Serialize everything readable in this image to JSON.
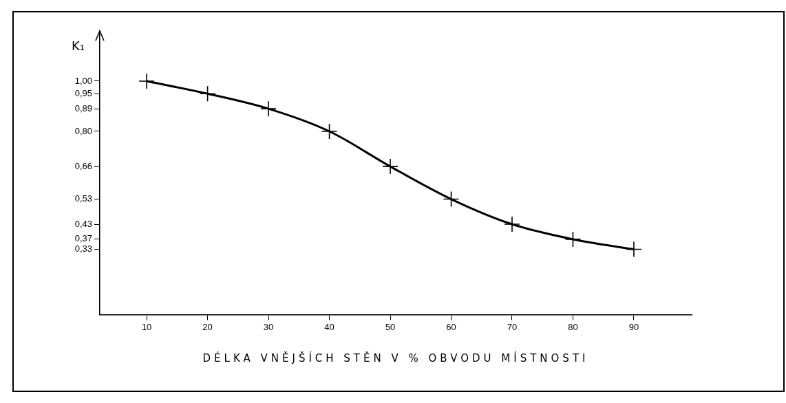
{
  "chart_data": {
    "type": "line",
    "ylabel": "K₁",
    "xlabel": "DÉLKA VNĚJŠÍCH STĚN V % OBVODU MÍSTNOSTI",
    "x": [
      10,
      20,
      30,
      40,
      50,
      60,
      70,
      80,
      90
    ],
    "series": [
      {
        "color": "#000000",
        "values": [
          1.0,
          0.95,
          0.89,
          0.8,
          0.66,
          0.53,
          0.43,
          0.37,
          0.33
        ]
      }
    ],
    "xlim": [
      2.3,
      99.5
    ],
    "xticks": [
      10,
      20,
      30,
      40,
      50,
      60,
      70,
      80,
      90
    ],
    "ylim": [
      0.07,
      1.2
    ],
    "yticks": [
      {
        "value": 0.33,
        "label": "0,33"
      },
      {
        "value": 0.37,
        "label": "0,37"
      },
      {
        "value": 0.43,
        "label": "0,43"
      },
      {
        "value": 0.53,
        "label": "0,53"
      },
      {
        "value": 0.66,
        "label": "0,66"
      },
      {
        "value": 0.8,
        "label": "0,80"
      },
      {
        "value": 0.89,
        "label": "0,89"
      },
      {
        "value": 0.95,
        "label": "0,95"
      },
      {
        "value": 1.0,
        "label": "1,00"
      }
    ],
    "grid": false,
    "legend": false,
    "marker": "cross",
    "line_style": "solid"
  }
}
